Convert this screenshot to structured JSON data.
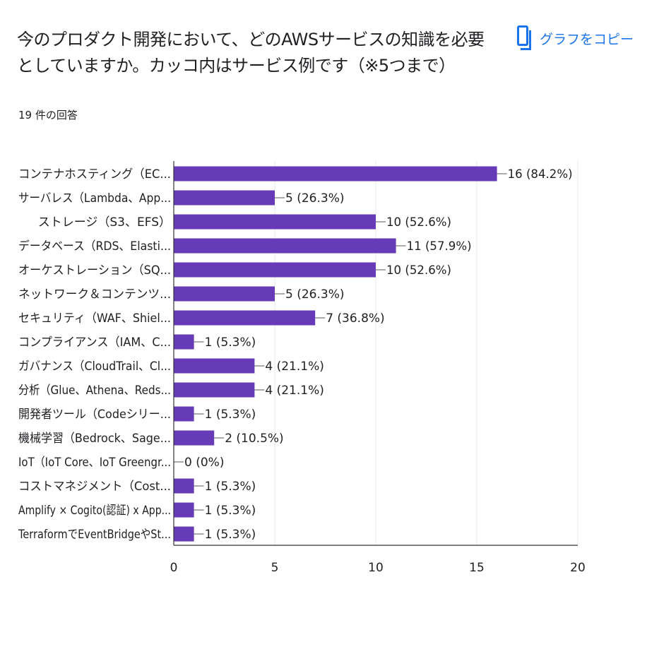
{
  "header": {
    "title": "今のプロダクト開発において、どのAWSサービスの知識を必要としていますか。カッコ内はサービス例です（※5つまで）",
    "response_count": "19 件の回答",
    "copy_label": "グラフをコピー",
    "copy_icon": "copy-icon"
  },
  "colors": {
    "bar": "#673ab7",
    "accent": "#1a73e8",
    "grid": "#e8e8e8",
    "axis": "#333333"
  },
  "chart_data": {
    "type": "bar",
    "orientation": "horizontal",
    "title": "",
    "xlabel": "",
    "ylabel": "",
    "xlim": [
      0,
      20
    ],
    "xticks": [
      0,
      5,
      10,
      15,
      20
    ],
    "grid": true,
    "categories": [
      "コンテナホスティング（EC...",
      "サーバレス（Lambda、App...",
      "ストレージ（S3、EFS）",
      "データベース（RDS、Elasti...",
      "オーケストレーション（SQ...",
      "ネットワーク＆コンテンツ...",
      "セキュリティ（WAF、Shiel...",
      "コンプライアンス（IAM、C...",
      "ガバナンス（CloudTrail、Cl...",
      "分析（Glue、Athena、Reds...",
      "開発者ツール（Codeシリー...",
      "機械学習（Bedrock、Sage...",
      "IoT（IoT Core、IoT Greengr...",
      "コストマネジメント（Cost...",
      "Amplify × Cogito(認証) x App...",
      "TerraformでEventBridgeやSt..."
    ],
    "values": [
      16,
      5,
      10,
      11,
      10,
      5,
      7,
      1,
      4,
      4,
      1,
      2,
      0,
      1,
      1,
      1
    ],
    "data_labels": [
      "16 (84.2%)",
      "5 (26.3%)",
      "10 (52.6%)",
      "11 (57.9%)",
      "10 (52.6%)",
      "5 (26.3%)",
      "7 (36.8%)",
      "1 (5.3%)",
      "4 (21.1%)",
      "4 (21.1%)",
      "1 (5.3%)",
      "2 (10.5%)",
      "0 (0%)",
      "1 (5.3%)",
      "1 (5.3%)",
      "1 (5.3%)"
    ]
  }
}
